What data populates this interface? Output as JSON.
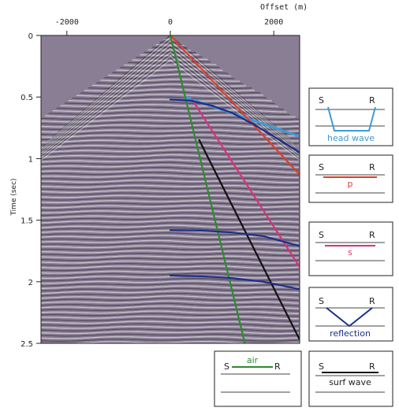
{
  "axes": {
    "x_title": "Offset (m)",
    "y_title": "Time (sec)",
    "x_ticks": [
      {
        "value": -2000,
        "label": "-2000"
      },
      {
        "value": 0,
        "label": "0"
      },
      {
        "value": 2000,
        "label": "2000"
      }
    ],
    "y_ticks": [
      {
        "value": 0,
        "label": "0"
      },
      {
        "value": 0.5,
        "label": "0.5"
      },
      {
        "value": 1,
        "label": "1"
      },
      {
        "value": 1.5,
        "label": "1.5"
      },
      {
        "value": 2,
        "label": "2"
      },
      {
        "value": 2.5,
        "label": "2.5"
      }
    ],
    "x_range": [
      -2500,
      2500
    ],
    "y_range": [
      0,
      2.5
    ]
  },
  "colors": {
    "seismic_base": "#8a7e95",
    "head_wave": "#3f9ad6",
    "p_wave": "#e23c2a",
    "s_wave": "#d8307a",
    "reflection": "#1a2f8c",
    "air_wave": "#2e8a2e",
    "surf_wave": "#111111"
  },
  "events": [
    {
      "id": "head",
      "type": "line",
      "points": [
        [
          280,
          0.5
        ],
        [
          2500,
          0.82
        ]
      ]
    },
    {
      "id": "p",
      "type": "line",
      "points": [
        [
          0,
          0
        ],
        [
          2500,
          1.13
        ]
      ]
    },
    {
      "id": "s",
      "type": "line",
      "points": [
        [
          420,
          0.52
        ],
        [
          2500,
          1.88
        ]
      ]
    },
    {
      "id": "air",
      "type": "line",
      "points": [
        [
          0,
          0
        ],
        [
          1440,
          2.5
        ]
      ]
    },
    {
      "id": "surf",
      "type": "line",
      "points": [
        [
          560,
          0.85
        ],
        [
          2500,
          2.47
        ]
      ]
    },
    {
      "id": "refl1",
      "type": "curve",
      "points": [
        [
          0,
          0.52
        ],
        [
          400,
          0.53
        ],
        [
          800,
          0.57
        ],
        [
          1200,
          0.63
        ],
        [
          1600,
          0.72
        ],
        [
          2000,
          0.82
        ],
        [
          2500,
          0.95
        ]
      ]
    },
    {
      "id": "refl2",
      "type": "curve",
      "points": [
        [
          0,
          1.58
        ],
        [
          600,
          1.585
        ],
        [
          1200,
          1.6
        ],
        [
          1800,
          1.63
        ],
        [
          2500,
          1.71
        ]
      ]
    },
    {
      "id": "refl3",
      "type": "curve",
      "points": [
        [
          0,
          1.95
        ],
        [
          600,
          1.955
        ],
        [
          1200,
          1.97
        ],
        [
          1800,
          2.0
        ],
        [
          2500,
          2.06
        ]
      ]
    }
  ],
  "legend": [
    {
      "id": "head",
      "s": "S",
      "r": "R",
      "label": "head wave"
    },
    {
      "id": "p",
      "s": "S",
      "r": "R",
      "label": "p"
    },
    {
      "id": "s",
      "s": "S",
      "r": "R",
      "label": "s"
    },
    {
      "id": "reflection",
      "s": "S",
      "r": "R",
      "label": "reflection"
    },
    {
      "id": "air",
      "s": "S",
      "r": "R",
      "label": "air"
    },
    {
      "id": "surf",
      "s": "S",
      "r": "R",
      "label": "surf wave"
    }
  ]
}
